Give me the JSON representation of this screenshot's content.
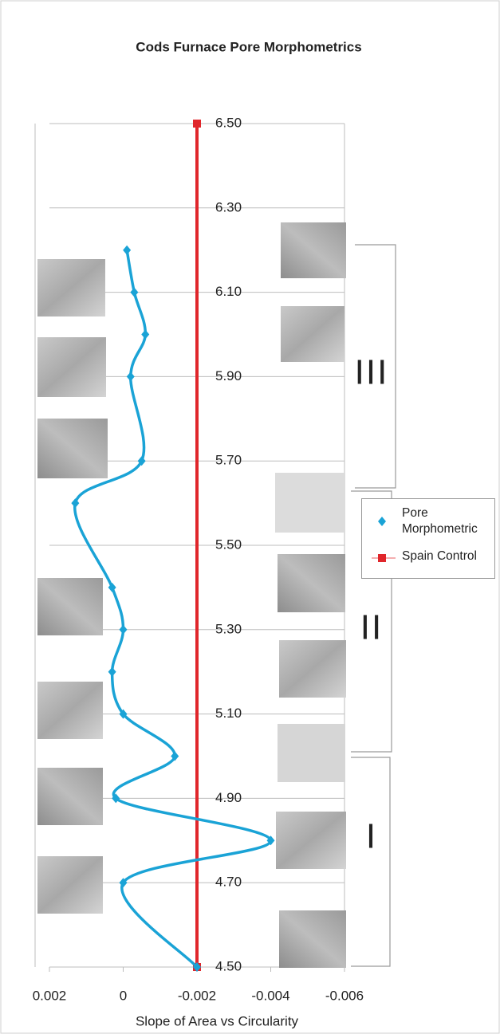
{
  "chart_data": {
    "type": "line",
    "title": "Cods Furnace Pore Morphometrics",
    "x_label": "Slope of Area vs Circularity",
    "series": [
      {
        "name": "Pore Morphometric",
        "color": "#1aa3d6",
        "marker": "diamond",
        "x": [
          -0.002,
          0,
          -0.004,
          0.0002,
          -0.0014,
          0,
          0.0003,
          0,
          0.0003,
          0.0013,
          -0.0005,
          -0.0002,
          -0.0006,
          -0.0003,
          -0.0001
        ],
        "y": [
          4.5,
          4.7,
          4.8,
          4.9,
          5.0,
          5.1,
          5.2,
          5.3,
          5.4,
          5.6,
          5.7,
          5.9,
          6.0,
          6.1,
          6.2
        ]
      },
      {
        "name": "Spain Control",
        "color": "#e0262b",
        "marker": "square",
        "x": [
          -0.002,
          -0.002
        ],
        "y": [
          4.5,
          6.5
        ]
      }
    ],
    "xlim": [
      0.002,
      -0.006
    ],
    "xticks": [
      0.002,
      0,
      -0.002,
      -0.004,
      -0.006
    ],
    "ylim": [
      4.5,
      6.5
    ],
    "yticks": [
      {
        "value": 4.5,
        "label": "4.50"
      },
      {
        "value": 4.7,
        "label": "4.70"
      },
      {
        "value": 4.9,
        "label": "4.90"
      },
      {
        "value": 5.1,
        "label": "5.10"
      },
      {
        "value": 5.3,
        "label": "5.30"
      },
      {
        "value": 5.5,
        "label": "5.50"
      },
      {
        "value": 5.7,
        "label": "5.70"
      },
      {
        "value": 5.9,
        "label": "5.90"
      },
      {
        "value": 6.1,
        "label": "6.10"
      },
      {
        "value": 6.3,
        "label": "6.30"
      },
      {
        "value": 6.5,
        "label": "6.50"
      }
    ],
    "grid": true,
    "annotations": [
      "III",
      "II",
      "I"
    ]
  }
}
